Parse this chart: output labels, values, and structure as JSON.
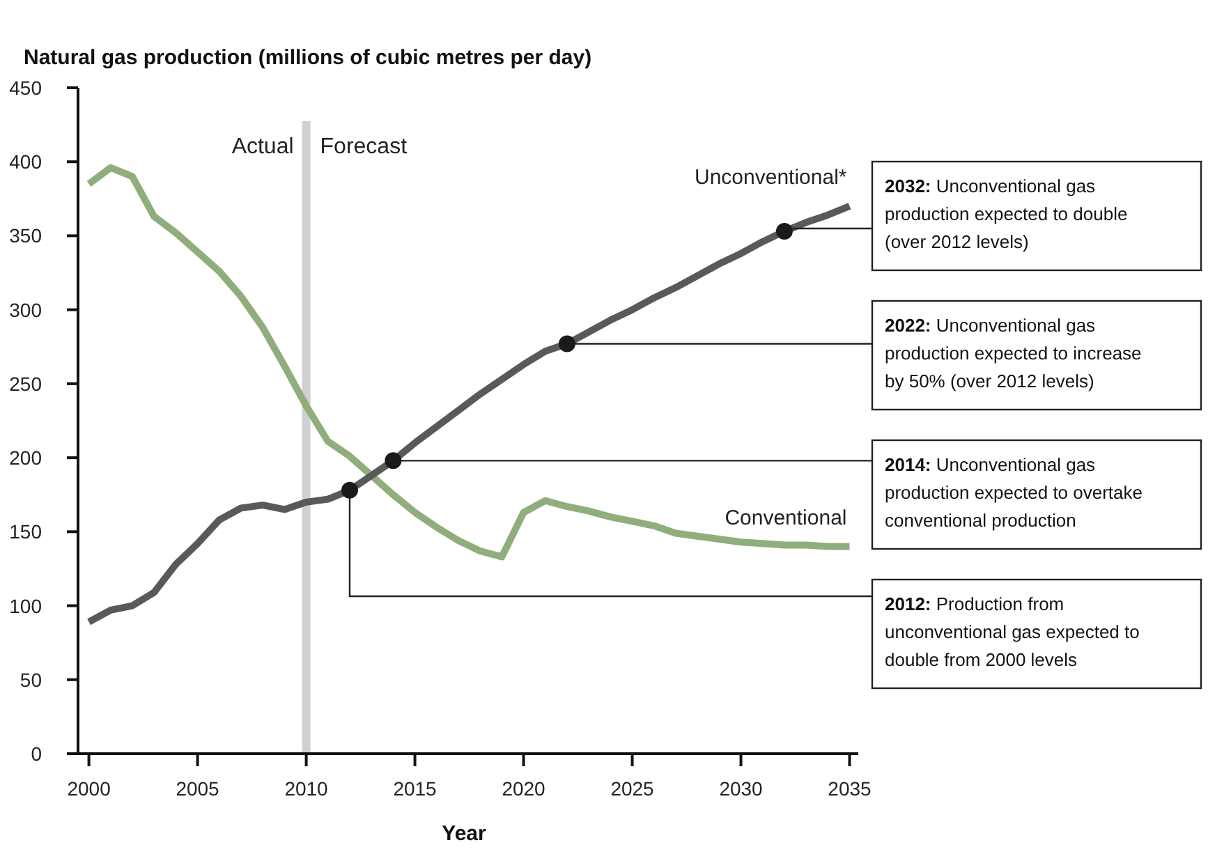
{
  "chart_data": {
    "type": "line",
    "title": "Natural gas production (millions of cubic metres per day)",
    "xlabel": "Year",
    "x": [
      2000,
      2001,
      2002,
      2003,
      2004,
      2005,
      2006,
      2007,
      2008,
      2009,
      2010,
      2011,
      2012,
      2013,
      2014,
      2015,
      2016,
      2017,
      2018,
      2019,
      2020,
      2021,
      2022,
      2023,
      2024,
      2025,
      2026,
      2027,
      2028,
      2029,
      2030,
      2031,
      2032,
      2033,
      2034,
      2035
    ],
    "series": [
      {
        "name": "Conventional",
        "color": "#8fae7b",
        "values": [
          385,
          396,
          390,
          363,
          352,
          339,
          326,
          309,
          288,
          262,
          235,
          211,
          201,
          188,
          175,
          163,
          153,
          144,
          137,
          133,
          163,
          171,
          167,
          164,
          160,
          157,
          154,
          149,
          147,
          145,
          143,
          142,
          141,
          141,
          140,
          140
        ]
      },
      {
        "name": "Unconventional*",
        "color": "#58595b",
        "values": [
          89,
          97,
          100,
          109,
          128,
          142,
          158,
          166,
          168,
          165,
          170,
          172,
          178,
          188,
          198,
          210,
          221,
          232,
          243,
          253,
          263,
          272,
          277,
          285,
          293,
          300,
          308,
          315,
          323,
          331,
          338,
          346,
          353,
          359,
          364,
          370
        ]
      }
    ],
    "xlim": [
      1999.5,
      2035.4
    ],
    "xticks": [
      2000,
      2005,
      2010,
      2015,
      2020,
      2025,
      2030,
      2035
    ],
    "ylim": [
      0,
      450
    ],
    "yticks": [
      0,
      50,
      100,
      150,
      200,
      250,
      300,
      350,
      400,
      450
    ],
    "grid": false,
    "marker": "none",
    "line_style": "solid",
    "ref_lines": [
      {
        "axis": "x",
        "value": 2010,
        "label": "Actual",
        "color": "#d0d0d2"
      }
    ],
    "annotations": [
      {
        "text": "Forecast",
        "x": 2010
      },
      {
        "text": "2032: Unconventional gas production expected to double (over 2012 levels)",
        "x": 2032,
        "y": 353
      },
      {
        "text": "2022: Unconventional gas production expected to increase by 50% (over 2012 levels)",
        "x": 2022,
        "y": 277
      },
      {
        "text": "2014: Unconventional gas production expected to overtake conventional production",
        "x": 2014,
        "y": 198
      },
      {
        "text": "2012: Production from unconventional gas expected to double from 2000 levels",
        "x": 2012,
        "y": 178
      }
    ]
  }
}
